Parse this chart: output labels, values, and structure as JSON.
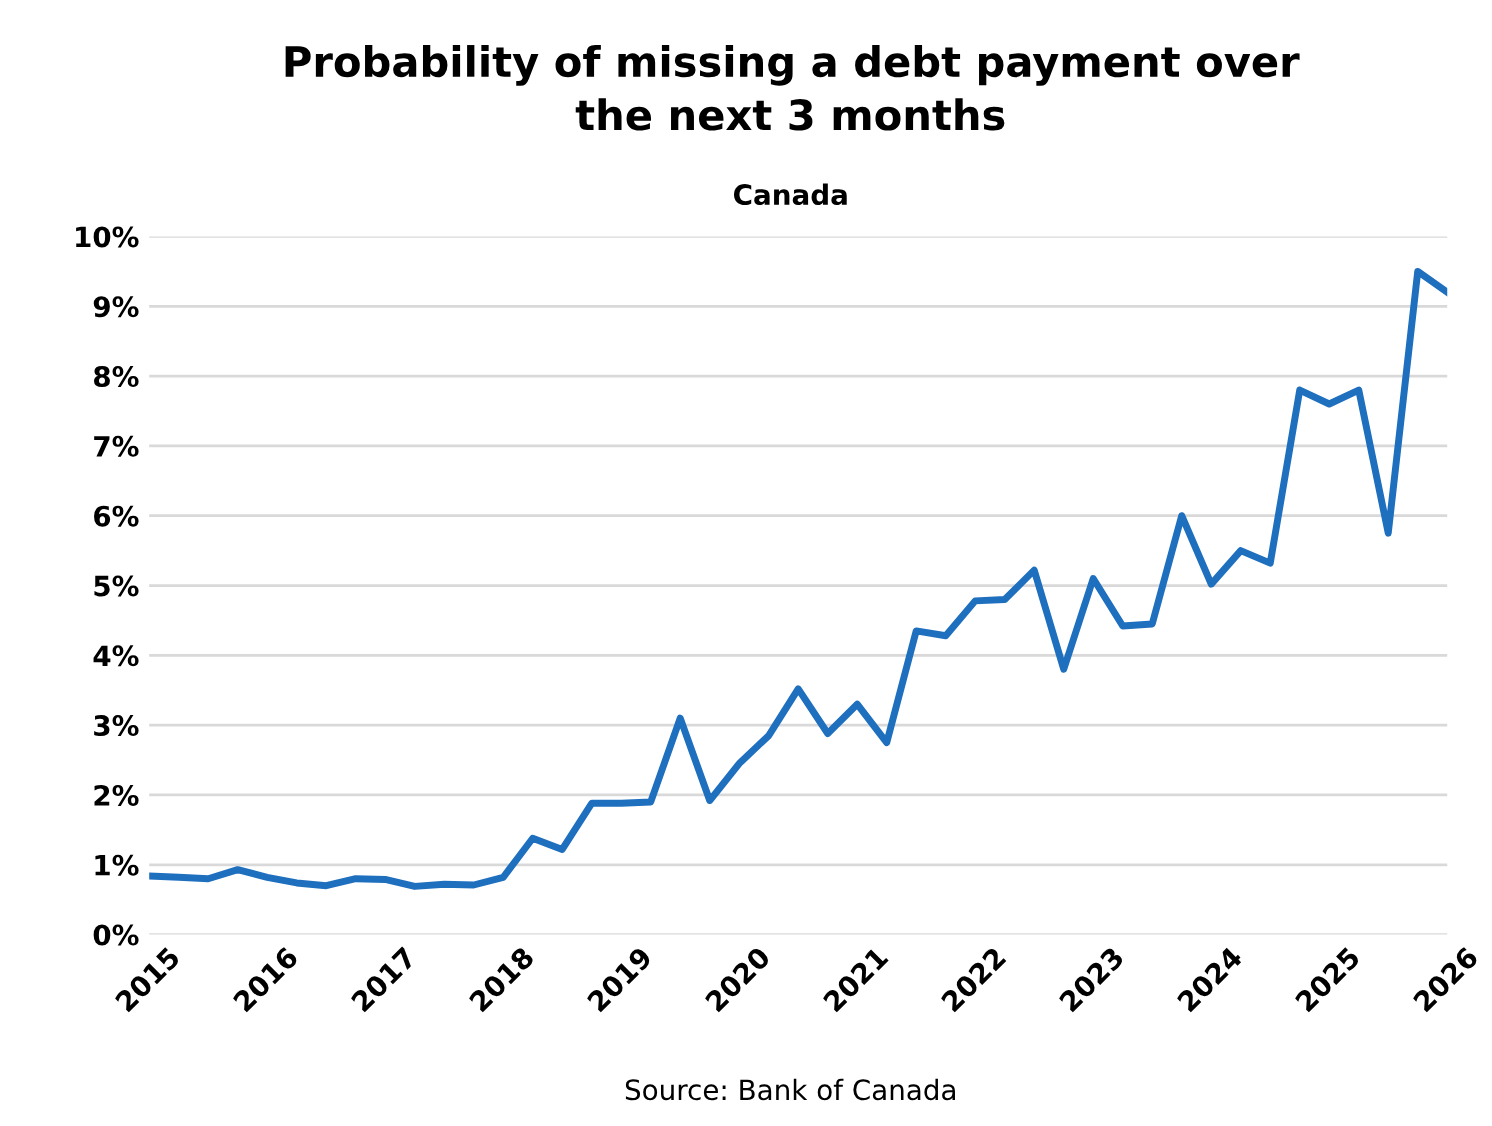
{
  "chart_data": {
    "type": "line",
    "title": "Probability of missing a debt payment over\nthe next 3 months",
    "subtitle": "Canada",
    "annotations": [
      "Source: Bank of Canada"
    ],
    "x": [
      2015,
      2015.25,
      2015.5,
      2015.75,
      2016,
      2016.25,
      2016.5,
      2016.75,
      2017,
      2017.25,
      2017.5,
      2017.75,
      2018,
      2018.25,
      2018.5,
      2018.75,
      2019,
      2019.25,
      2019.5,
      2019.75,
      2020,
      2020.25,
      2020.5,
      2020.75,
      2021,
      2021.25,
      2021.5,
      2021.75,
      2022,
      2022.25,
      2022.5,
      2022.75,
      2023,
      2023.25,
      2023.5,
      2023.75,
      2024,
      2024.25,
      2024.5,
      2024.75,
      2025,
      2025.25,
      2025.5,
      2025.75,
      2026
    ],
    "series": [
      {
        "color": "#1f6fbf",
        "values": [
          0.84,
          0.82,
          0.8,
          0.93,
          0.82,
          0.74,
          0.7,
          0.8,
          0.79,
          0.69,
          0.72,
          0.71,
          0.82,
          1.38,
          1.22,
          1.88,
          1.88,
          1.9,
          3.1,
          1.92,
          2.45,
          2.85,
          3.52,
          2.88,
          3.3,
          2.75,
          4.35,
          4.28,
          4.78,
          4.8,
          5.22,
          3.8,
          5.1,
          4.42,
          4.45,
          6.0,
          5.02,
          5.5,
          5.32,
          7.8,
          7.6,
          7.8,
          5.75,
          9.5,
          9.2
        ]
      }
    ],
    "xlim": [
      2015,
      2026
    ],
    "xticks": [
      2015,
      2016,
      2017,
      2018,
      2019,
      2020,
      2021,
      2022,
      2023,
      2024,
      2025,
      2026
    ],
    "ylim": [
      0,
      10
    ],
    "yticks": [
      {
        "value": 0,
        "label": "0%"
      },
      {
        "value": 1,
        "label": "1%"
      },
      {
        "value": 2,
        "label": "2%"
      },
      {
        "value": 3,
        "label": "3%"
      },
      {
        "value": 4,
        "label": "4%"
      },
      {
        "value": 5,
        "label": "5%"
      },
      {
        "value": 6,
        "label": "6%"
      },
      {
        "value": 7,
        "label": "7%"
      },
      {
        "value": 8,
        "label": "8%"
      },
      {
        "value": 9,
        "label": "9%"
      },
      {
        "value": 10,
        "label": "10%"
      }
    ],
    "grid": "y",
    "marker": "none",
    "line_style": "solid"
  }
}
